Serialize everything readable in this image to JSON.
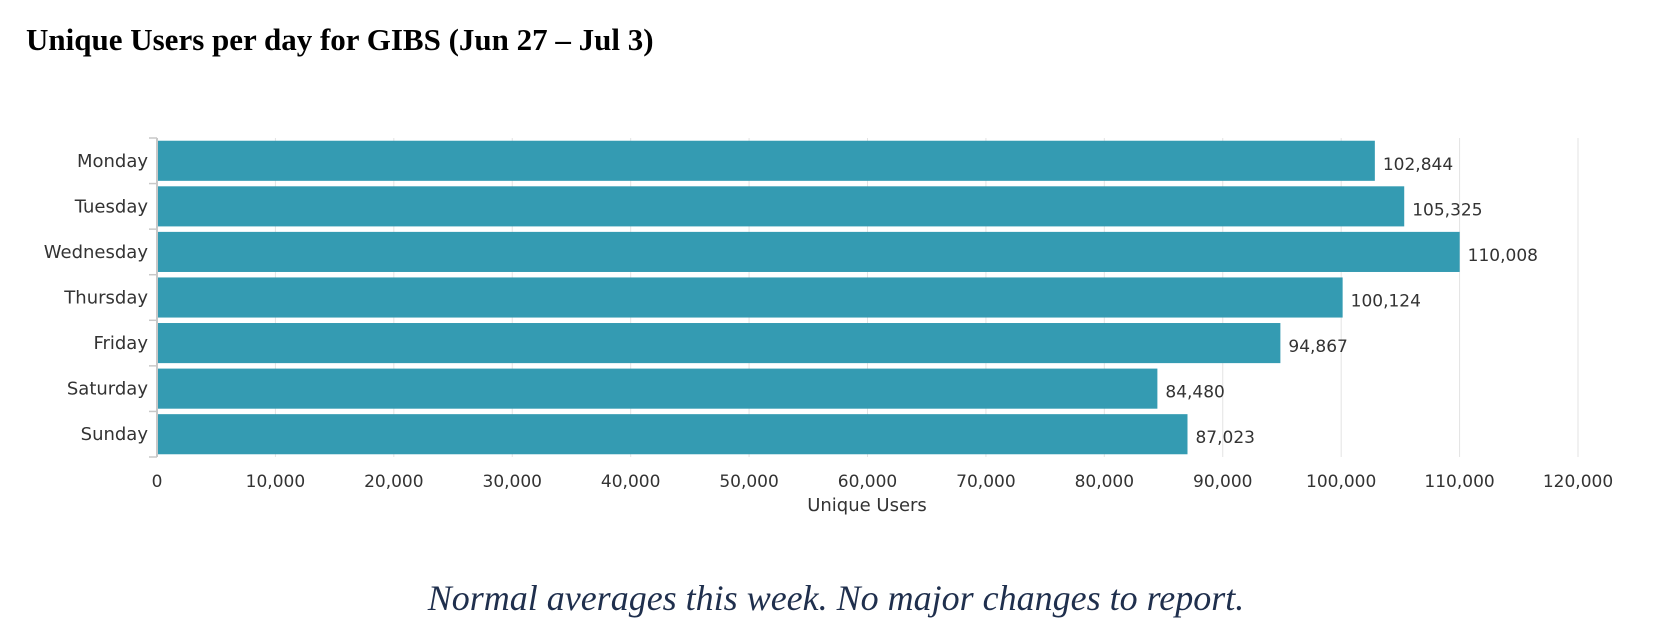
{
  "title": "Unique Users per day for GIBS (Jun 27 – Jul 3)",
  "note": "Normal averages this week.  No major changes to report.",
  "chart_data": {
    "type": "bar",
    "orientation": "horizontal",
    "categories": [
      "Monday",
      "Tuesday",
      "Wednesday",
      "Thursday",
      "Friday",
      "Saturday",
      "Sunday"
    ],
    "values": [
      102844,
      105325,
      110008,
      100124,
      94867,
      84480,
      87023
    ],
    "value_labels": [
      "102,844",
      "105,325",
      "110,008",
      "100,124",
      "94,867",
      "84,480",
      "87,023"
    ],
    "xlabel": "Unique Users",
    "ylabel": "",
    "xlim": [
      0,
      120000
    ],
    "xticks": [
      0,
      10000,
      20000,
      30000,
      40000,
      50000,
      60000,
      70000,
      80000,
      90000,
      100000,
      110000,
      120000
    ],
    "xtick_labels": [
      "0",
      "10,000",
      "20,000",
      "30,000",
      "40,000",
      "50,000",
      "60,000",
      "70,000",
      "80,000",
      "90,000",
      "100,000",
      "110,000",
      "120,000"
    ],
    "grid": true,
    "bar_color": "#349bb2",
    "grid_color": "#e3e3e3",
    "axis_color": "#c8c8c8"
  }
}
